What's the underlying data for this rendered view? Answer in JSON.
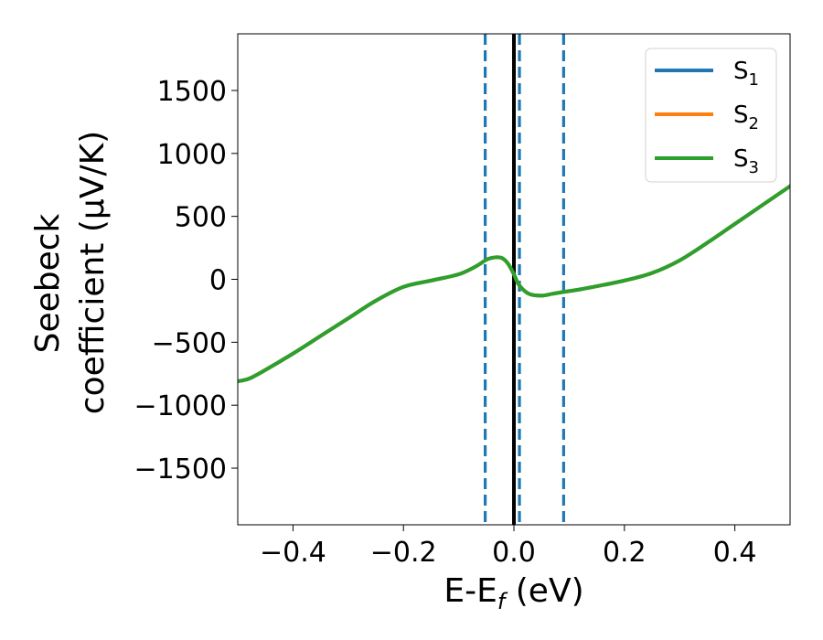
{
  "chart_data": {
    "type": "line",
    "title": "",
    "xlabel": "E-E$_f$ (eV)",
    "xlabel_parts": {
      "main": "E-E",
      "sub": "f",
      "unit": " (eV)"
    },
    "ylabel": "Seebeck coefficient (μV/K)",
    "ylabel_lines": [
      "Seebeck",
      "coefficient  (μV/K)"
    ],
    "xlim": [
      -0.5,
      0.5
    ],
    "ylim": [
      -1950,
      1950
    ],
    "xticks": [
      -0.4,
      -0.2,
      0.0,
      0.2,
      0.4
    ],
    "xtick_labels": [
      "−0.4",
      "−0.2",
      "0.0",
      "0.2",
      "0.4"
    ],
    "yticks": [
      -1500,
      -1000,
      -500,
      0,
      500,
      1000,
      1500
    ],
    "ytick_labels": [
      "−1500",
      "−1000",
      "−500",
      "0",
      "500",
      "1000",
      "1500"
    ],
    "grid": false,
    "legend_position": "top-right",
    "x": [
      -0.5,
      -0.48,
      -0.45,
      -0.4,
      -0.35,
      -0.3,
      -0.25,
      -0.2,
      -0.15,
      -0.1,
      -0.07,
      -0.05,
      -0.04,
      -0.03,
      -0.02,
      -0.01,
      0.0,
      0.005,
      0.01,
      0.02,
      0.03,
      0.05,
      0.07,
      0.09,
      0.12,
      0.15,
      0.2,
      0.25,
      0.3,
      0.35,
      0.4,
      0.45,
      0.5
    ],
    "series": [
      {
        "name": "S",
        "sub": "1",
        "color": "#1f77b4",
        "values": [
          -810,
          -790,
          -720,
          -590,
          -450,
          -310,
          -170,
          -60,
          -10,
          40,
          100,
          155,
          170,
          175,
          165,
          120,
          40,
          -10,
          -50,
          -95,
          -120,
          -130,
          -115,
          -100,
          -80,
          -55,
          -10,
          50,
          150,
          290,
          440,
          590,
          740
        ]
      },
      {
        "name": "S",
        "sub": "2",
        "color": "#ff7f0e",
        "values": [
          -810,
          -790,
          -720,
          -590,
          -450,
          -310,
          -170,
          -60,
          -10,
          40,
          100,
          155,
          170,
          175,
          165,
          120,
          40,
          -10,
          -50,
          -95,
          -120,
          -130,
          -115,
          -100,
          -80,
          -55,
          -10,
          50,
          150,
          290,
          440,
          590,
          740
        ]
      },
      {
        "name": "S",
        "sub": "3",
        "color": "#2ca02c",
        "values": [
          -810,
          -790,
          -720,
          -590,
          -450,
          -310,
          -170,
          -60,
          -10,
          40,
          100,
          155,
          170,
          175,
          165,
          120,
          40,
          -10,
          -50,
          -95,
          -120,
          -130,
          -115,
          -100,
          -80,
          -55,
          -10,
          50,
          150,
          290,
          440,
          590,
          740
        ]
      }
    ],
    "vertical_lines": [
      {
        "x": 0.0,
        "style": "solid",
        "color": "#000000"
      },
      {
        "x": -0.052,
        "style": "dashed",
        "color": "#1f77b4"
      },
      {
        "x": 0.01,
        "style": "dashed",
        "color": "#1f77b4"
      },
      {
        "x": 0.09,
        "style": "dashed",
        "color": "#1f77b4"
      }
    ]
  }
}
